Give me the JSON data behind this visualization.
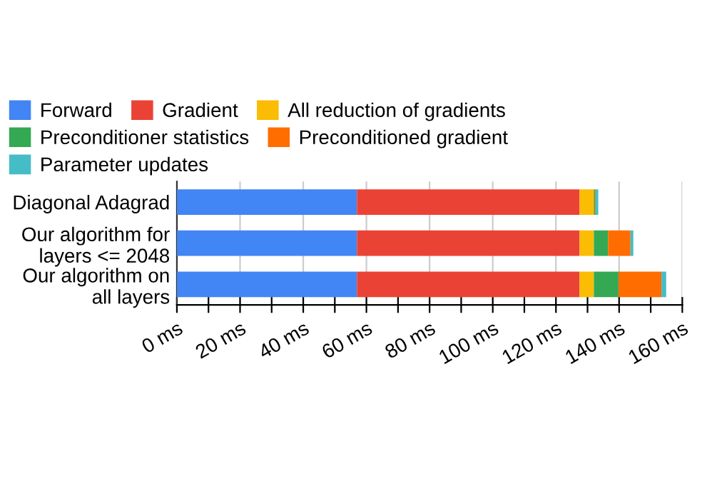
{
  "chart_data": {
    "type": "bar",
    "orientation": "horizontal",
    "stacked": true,
    "categories": [
      "Diagonal Adagrad",
      "Our algorithm for\nlayers <= 2048",
      "Our algorithm on\nall layers"
    ],
    "series": [
      {
        "name": "Forward",
        "color": "#4285f4",
        "values": [
          57,
          57,
          57
        ]
      },
      {
        "name": "Gradient",
        "color": "#ea4335",
        "values": [
          70.5,
          70.5,
          70.5
        ]
      },
      {
        "name": "All reduction of gradients",
        "color": "#fbbc04",
        "values": [
          4.5,
          4.5,
          4.5
        ]
      },
      {
        "name": "Preconditioner statistics",
        "color": "#34a853",
        "values": [
          0.4,
          4.5,
          7.8
        ]
      },
      {
        "name": "Preconditioned gradient",
        "color": "#ff6d01",
        "values": [
          0.2,
          7.1,
          13.6
        ]
      },
      {
        "name": "Parameter updates",
        "color": "#46bdc6",
        "values": [
          0.8,
          0.9,
          1.5
        ]
      }
    ],
    "xlim": [
      0,
      160
    ],
    "xticks": [
      {
        "value": 0,
        "label": "0 ms"
      },
      {
        "value": 10,
        "label": null
      },
      {
        "value": 20,
        "label": "20 ms"
      },
      {
        "value": 30,
        "label": null
      },
      {
        "value": 40,
        "label": "40 ms"
      },
      {
        "value": 50,
        "label": null
      },
      {
        "value": 60,
        "label": "60 ms"
      },
      {
        "value": 70,
        "label": null
      },
      {
        "value": 80,
        "label": "80 ms"
      },
      {
        "value": 90,
        "label": null
      },
      {
        "value": 100,
        "label": "100 ms"
      },
      {
        "value": 110,
        "label": null
      },
      {
        "value": 120,
        "label": "120 ms"
      },
      {
        "value": 130,
        "label": null
      },
      {
        "value": 140,
        "label": "140 ms"
      },
      {
        "value": 150,
        "label": null
      },
      {
        "value": 160,
        "label": "160 ms"
      }
    ],
    "grid": "x",
    "legend": "top"
  }
}
